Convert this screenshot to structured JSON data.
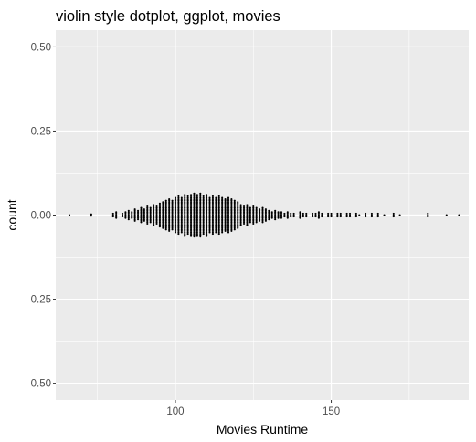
{
  "chart_data": {
    "type": "scatter",
    "subtype": "violin-style dotplot",
    "title": "violin style dotplot, ggplot, movies",
    "xlabel": "Movies Runtime",
    "ylabel": "count",
    "xlim": [
      61.6,
      194.1
    ],
    "ylim": [
      -0.55,
      0.55
    ],
    "xticks": [
      100,
      150
    ],
    "xtick_labels": [
      "100",
      "150"
    ],
    "yticks": [
      -0.5,
      -0.25,
      0,
      0.25,
      0.5
    ],
    "ytick_labels": [
      "-0.50",
      "-0.25",
      "0.00",
      "0.25",
      "0.50"
    ],
    "grid": true,
    "panel_background": "#ebebeb",
    "grid_color": "#ffffff",
    "dot_color": "#000000",
    "dot_count_spacing": 0.0043,
    "stacks": [
      {
        "x": 66,
        "n": 1
      },
      {
        "x": 73,
        "n": 2
      },
      {
        "x": 80,
        "n": 3
      },
      {
        "x": 81,
        "n": 5
      },
      {
        "x": 83,
        "n": 3
      },
      {
        "x": 84,
        "n": 5
      },
      {
        "x": 85,
        "n": 7
      },
      {
        "x": 86,
        "n": 5
      },
      {
        "x": 87,
        "n": 9
      },
      {
        "x": 88,
        "n": 7
      },
      {
        "x": 89,
        "n": 11
      },
      {
        "x": 90,
        "n": 9
      },
      {
        "x": 91,
        "n": 13
      },
      {
        "x": 92,
        "n": 11
      },
      {
        "x": 93,
        "n": 15
      },
      {
        "x": 94,
        "n": 13
      },
      {
        "x": 95,
        "n": 17
      },
      {
        "x": 96,
        "n": 19
      },
      {
        "x": 97,
        "n": 21
      },
      {
        "x": 98,
        "n": 23
      },
      {
        "x": 99,
        "n": 21
      },
      {
        "x": 100,
        "n": 25
      },
      {
        "x": 101,
        "n": 27
      },
      {
        "x": 102,
        "n": 25
      },
      {
        "x": 103,
        "n": 29
      },
      {
        "x": 104,
        "n": 27
      },
      {
        "x": 105,
        "n": 29
      },
      {
        "x": 106,
        "n": 31
      },
      {
        "x": 107,
        "n": 29
      },
      {
        "x": 108,
        "n": 31
      },
      {
        "x": 109,
        "n": 27
      },
      {
        "x": 110,
        "n": 29
      },
      {
        "x": 111,
        "n": 25
      },
      {
        "x": 112,
        "n": 27
      },
      {
        "x": 113,
        "n": 25
      },
      {
        "x": 114,
        "n": 27
      },
      {
        "x": 115,
        "n": 25
      },
      {
        "x": 116,
        "n": 23
      },
      {
        "x": 117,
        "n": 25
      },
      {
        "x": 118,
        "n": 23
      },
      {
        "x": 119,
        "n": 21
      },
      {
        "x": 120,
        "n": 19
      },
      {
        "x": 121,
        "n": 15
      },
      {
        "x": 122,
        "n": 13
      },
      {
        "x": 123,
        "n": 15
      },
      {
        "x": 124,
        "n": 11
      },
      {
        "x": 125,
        "n": 13
      },
      {
        "x": 126,
        "n": 11
      },
      {
        "x": 127,
        "n": 9
      },
      {
        "x": 128,
        "n": 11
      },
      {
        "x": 129,
        "n": 9
      },
      {
        "x": 130,
        "n": 7
      },
      {
        "x": 131,
        "n": 5
      },
      {
        "x": 132,
        "n": 7
      },
      {
        "x": 133,
        "n": 5
      },
      {
        "x": 134,
        "n": 5
      },
      {
        "x": 135,
        "n": 3
      },
      {
        "x": 136,
        "n": 5
      },
      {
        "x": 137,
        "n": 3
      },
      {
        "x": 138,
        "n": 3
      },
      {
        "x": 140,
        "n": 5
      },
      {
        "x": 141,
        "n": 3
      },
      {
        "x": 142,
        "n": 3
      },
      {
        "x": 144,
        "n": 3
      },
      {
        "x": 145,
        "n": 3
      },
      {
        "x": 146,
        "n": 5
      },
      {
        "x": 147,
        "n": 3
      },
      {
        "x": 149,
        "n": 3
      },
      {
        "x": 150,
        "n": 3
      },
      {
        "x": 152,
        "n": 3
      },
      {
        "x": 153,
        "n": 3
      },
      {
        "x": 155,
        "n": 3
      },
      {
        "x": 156,
        "n": 3
      },
      {
        "x": 158,
        "n": 3
      },
      {
        "x": 159,
        "n": 1
      },
      {
        "x": 161,
        "n": 3
      },
      {
        "x": 163,
        "n": 3
      },
      {
        "x": 165,
        "n": 3
      },
      {
        "x": 167,
        "n": 1
      },
      {
        "x": 170,
        "n": 3
      },
      {
        "x": 172,
        "n": 1
      },
      {
        "x": 181,
        "n": 3
      },
      {
        "x": 187,
        "n": 1
      },
      {
        "x": 191,
        "n": 1
      }
    ]
  }
}
